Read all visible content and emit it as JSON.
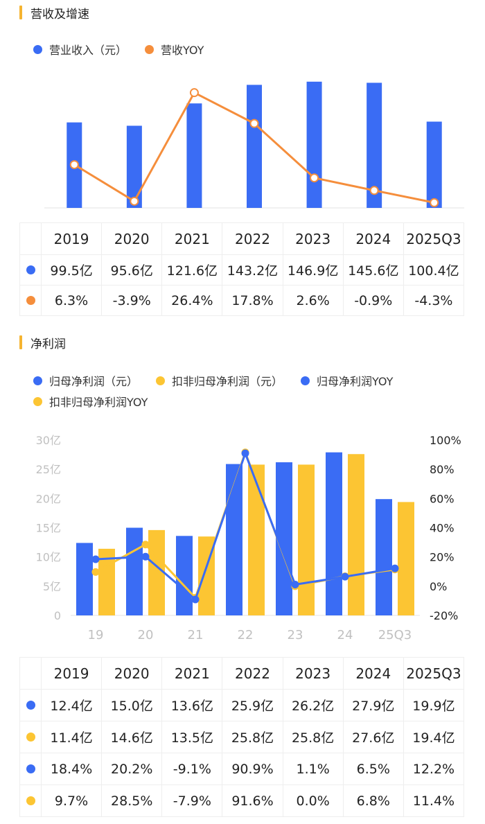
{
  "section1": {
    "title": "营收及增速",
    "legend": [
      {
        "label": "营业收入（元）",
        "color": "#3a6cf4"
      },
      {
        "label": "营收YOY",
        "color": "#f58e3c"
      }
    ]
  },
  "section2": {
    "title": "净利润",
    "legend": [
      {
        "label": "归母净利润（元）",
        "color": "#3a6cf4"
      },
      {
        "label": "扣非归母净利润（元）",
        "color": "#fcc533"
      },
      {
        "label": "归母净利润YOY",
        "color": "#3a6cf4"
      },
      {
        "label": "扣非归母净利润YOY",
        "color": "#fcc533"
      }
    ]
  },
  "chart_data": [
    {
      "type": "bar",
      "title": "营收及增速",
      "categories": [
        "2019",
        "2020",
        "2021",
        "2022",
        "2023",
        "2024",
        "2025Q3"
      ],
      "series": [
        {
          "name": "营业收入（元）",
          "type": "bar",
          "values": [
            99.5,
            95.6,
            121.6,
            143.2,
            146.9,
            145.6,
            100.4
          ],
          "unit": "亿",
          "color": "#3a6cf4"
        },
        {
          "name": "营收YOY",
          "type": "line",
          "values": [
            6.3,
            -3.9,
            26.4,
            17.8,
            2.6,
            -0.9,
            -4.3
          ],
          "unit": "%",
          "color": "#f58e3c"
        }
      ],
      "table": {
        "headers": [
          "2019",
          "2020",
          "2021",
          "2022",
          "2023",
          "2024",
          "2025Q3"
        ],
        "rows": [
          {
            "color": "#3a6cf4",
            "cells": [
              "99.5亿",
              "95.6亿",
              "121.6亿",
              "143.2亿",
              "146.9亿",
              "145.6亿",
              "100.4亿"
            ]
          },
          {
            "color": "#f58e3c",
            "cells": [
              "6.3%",
              "-3.9%",
              "26.4%",
              "17.8%",
              "2.6%",
              "-0.9%",
              "-4.3%"
            ]
          }
        ]
      }
    },
    {
      "type": "bar",
      "title": "净利润",
      "categories": [
        "19",
        "20",
        "21",
        "22",
        "23",
        "24",
        "25Q3"
      ],
      "y_left": {
        "ticks": [
          "0",
          "5亿",
          "10亿",
          "15亿",
          "20亿",
          "25亿",
          "30亿"
        ],
        "range": [
          0,
          30
        ]
      },
      "y_right": {
        "ticks": [
          "-20%",
          "0%",
          "20%",
          "40%",
          "60%",
          "80%",
          "100%"
        ],
        "range": [
          -20,
          100
        ]
      },
      "series": [
        {
          "name": "归母净利润（元）",
          "type": "bar",
          "axis": "left",
          "values": [
            12.4,
            15.0,
            13.6,
            25.9,
            26.2,
            27.9,
            19.9
          ],
          "color": "#3a6cf4"
        },
        {
          "name": "扣非归母净利润（元）",
          "type": "bar",
          "axis": "left",
          "values": [
            11.4,
            14.6,
            13.5,
            25.8,
            25.8,
            27.6,
            19.4
          ],
          "color": "#fcc533"
        },
        {
          "name": "归母净利润YOY",
          "type": "line",
          "axis": "right",
          "values": [
            18.4,
            20.2,
            -9.1,
            90.9,
            1.1,
            6.5,
            12.2
          ],
          "color": "#3a6cf4"
        },
        {
          "name": "扣非归母净利润YOY",
          "type": "line",
          "axis": "right",
          "values": [
            9.7,
            28.5,
            -7.9,
            91.6,
            0.0,
            6.8,
            11.4
          ],
          "color": "#fcc533"
        }
      ],
      "table": {
        "headers": [
          "2019",
          "2020",
          "2021",
          "2022",
          "2023",
          "2024",
          "2025Q3"
        ],
        "rows": [
          {
            "color": "#3a6cf4",
            "cells": [
              "12.4亿",
              "15.0亿",
              "13.6亿",
              "25.9亿",
              "26.2亿",
              "27.9亿",
              "19.9亿"
            ]
          },
          {
            "color": "#fcc533",
            "cells": [
              "11.4亿",
              "14.6亿",
              "13.5亿",
              "25.8亿",
              "25.8亿",
              "27.6亿",
              "19.4亿"
            ]
          },
          {
            "color": "#3a6cf4",
            "cells": [
              "18.4%",
              "20.2%",
              "-9.1%",
              "90.9%",
              "1.1%",
              "6.5%",
              "12.2%"
            ]
          },
          {
            "color": "#fcc533",
            "cells": [
              "9.7%",
              "28.5%",
              "-7.9%",
              "91.6%",
              "0.0%",
              "6.8%",
              "11.4%"
            ]
          }
        ]
      }
    }
  ]
}
